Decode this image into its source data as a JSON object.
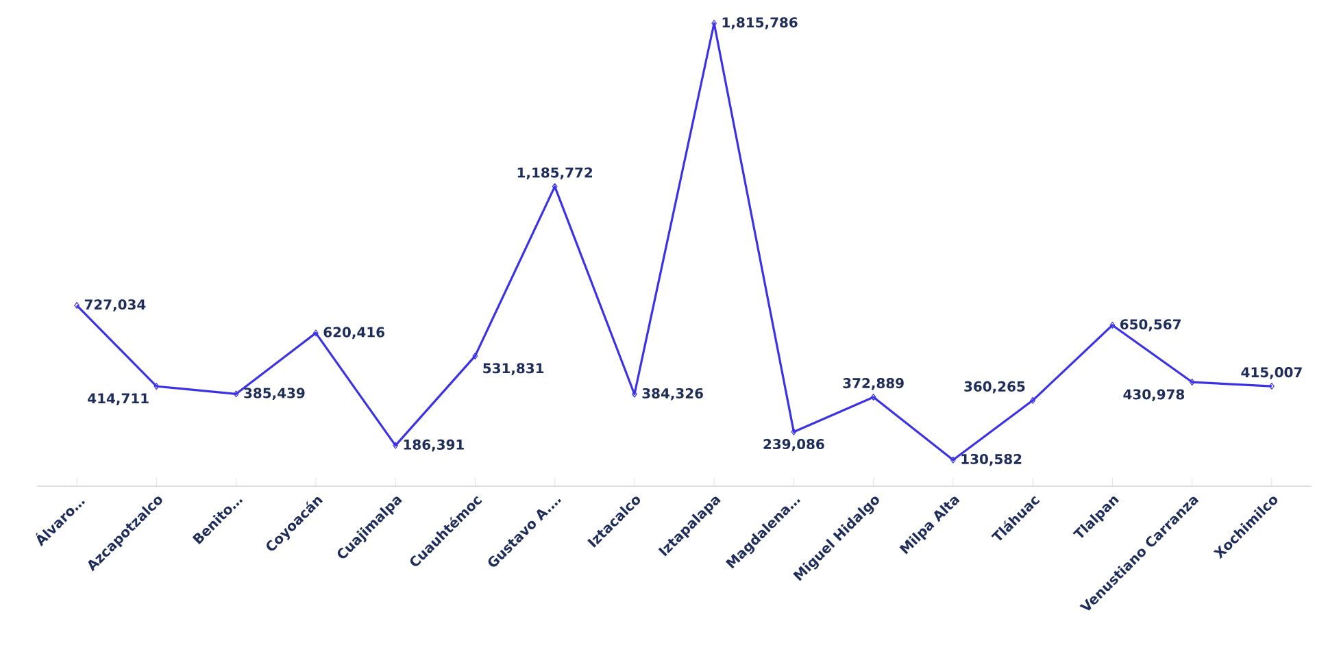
{
  "chart_data": {
    "type": "line",
    "categories": [
      "Álvaro…",
      "Azcapotzalco",
      "Benito…",
      "Coyoacán",
      "Cuajimalpa",
      "Cuauhtémoc",
      "Gustavo A.…",
      "Iztacalco",
      "Iztapalapa",
      "Magdalena…",
      "Miguel Hidalgo",
      "Milpa Alta",
      "Tláhuac",
      "Tlalpan",
      "Venustiano Carranza",
      "Xochimilco"
    ],
    "series": [
      {
        "color": "#3b32e6",
        "values": [
          727034,
          414711,
          385439,
          620416,
          186391,
          531831,
          1185772,
          384326,
          1815786,
          239086,
          372889,
          130582,
          360265,
          650567,
          430978,
          415007
        ],
        "value_labels": [
          "727,034",
          "414,711",
          "385,439",
          "620,416",
          "186,391",
          "531,831",
          "1,185,772",
          "384,326",
          "1,815,786",
          "239,086",
          "372,889",
          "130,582",
          "360,265",
          "650,567",
          "430,978",
          "415,007"
        ]
      }
    ],
    "tick_labels": "x",
    "marker": "diamond"
  }
}
